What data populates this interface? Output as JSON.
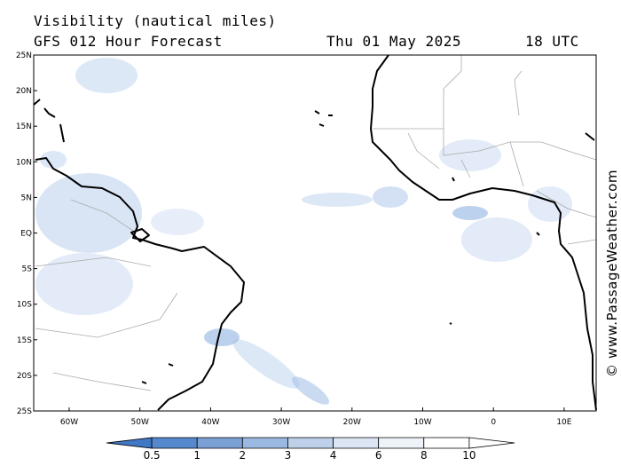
{
  "header": {
    "title": "Visibility (nautical miles)",
    "model": "GFS 012 Hour Forecast",
    "date": "Thu 01 May 2025",
    "time": "18 UTC"
  },
  "lat_labels": [
    "25N",
    "20N",
    "15N",
    "10N",
    "5N",
    "EQ",
    "5S",
    "10S",
    "15S",
    "20S",
    "25S"
  ],
  "lon_labels": [
    "60W",
    "50W",
    "40W",
    "30W",
    "20W",
    "10W",
    "0",
    "10E"
  ],
  "colorbar": {
    "labels": [
      "0.5",
      "1",
      "2",
      "3",
      "4",
      "6",
      "8",
      "10"
    ],
    "colors": [
      "#3f78c4",
      "#5588cc",
      "#7aa0d6",
      "#9bb8e0",
      "#bdd0ea",
      "#dbe5f3",
      "#eef3f9",
      "#ffffff",
      "#ffffff"
    ]
  },
  "copyright": "© www.PassageWeather.com",
  "colors": {
    "land": "#ffffff",
    "coast": "#000000",
    "border": "#aaaaaa",
    "haze": "#9fbde6"
  }
}
